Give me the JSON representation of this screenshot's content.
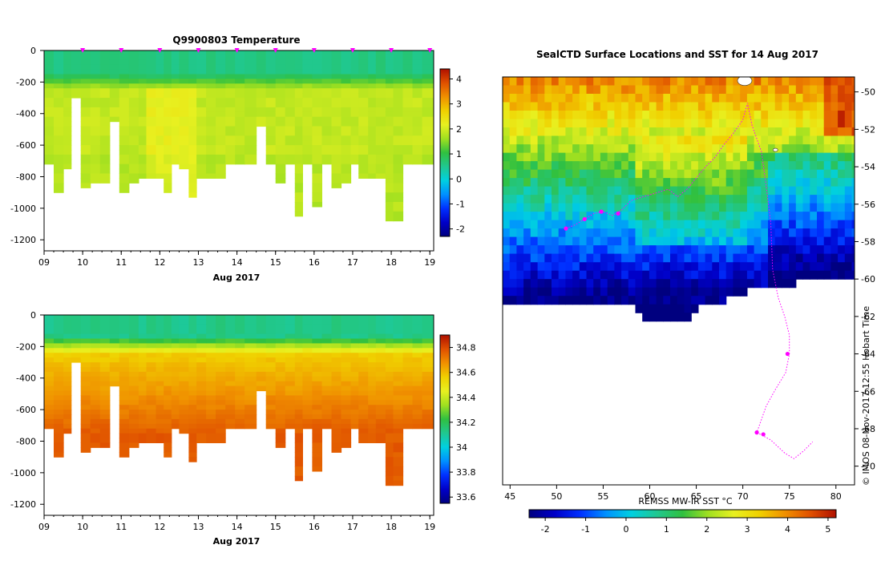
{
  "colors": {
    "jet": [
      "#00007f",
      "#0000c8",
      "#0030ff",
      "#0090ff",
      "#00d0e0",
      "#20c890",
      "#30c040",
      "#a0e020",
      "#e8f020",
      "#f0d000",
      "#f09000",
      "#e05000",
      "#b01000"
    ],
    "magenta": "#ff00ff"
  },
  "chart_data": [
    {
      "type": "heatmap",
      "title": "Q9900803  Temperature",
      "xlabel": "Aug 2017",
      "x_ticks": [
        "09",
        "10",
        "11",
        "12",
        "13",
        "14",
        "15",
        "16",
        "17",
        "18",
        "19"
      ],
      "y_ticks": [
        "0",
        "-200",
        "-400",
        "-600",
        "-800",
        "-1000",
        "-1200"
      ],
      "ylim": [
        -1270,
        0
      ],
      "xlim": [
        9,
        19.1
      ],
      "colorbar_ticks": [
        "4",
        "3",
        "2",
        "1",
        "0",
        "-1",
        "-2"
      ],
      "colorbar_range": [
        -2.3,
        4.4
      ],
      "profile_times": [
        9.0,
        9.25,
        9.5,
        9.7,
        9.95,
        10.2,
        10.45,
        10.7,
        10.95,
        11.2,
        11.45,
        11.65,
        11.9,
        12.1,
        12.3,
        12.5,
        12.75,
        12.95,
        13.2,
        13.45,
        13.7,
        13.95,
        14.2,
        14.5,
        14.75,
        15.0,
        15.25,
        15.5,
        15.7,
        15.95,
        16.2,
        16.45,
        16.7,
        16.95,
        17.15,
        17.4,
        17.6,
        17.85,
        18.05,
        18.3,
        18.55,
        18.8
      ],
      "profile_max_depth": [
        700,
        880,
        740,
        300,
        850,
        840,
        840,
        430,
        880,
        840,
        790,
        810,
        790,
        900,
        720,
        730,
        930,
        810,
        790,
        790,
        700,
        700,
        700,
        460,
        700,
        840,
        700,
        1050,
        700,
        990,
        700,
        850,
        840,
        700,
        790,
        790,
        790,
        1060,
        1060,
        700,
        700,
        700
      ],
      "markers_at": [
        10,
        11,
        12,
        13,
        14,
        15,
        16,
        17,
        18,
        19
      ]
    },
    {
      "type": "heatmap",
      "title": "",
      "xlabel": "Aug 2017",
      "x_ticks": [
        "09",
        "10",
        "11",
        "12",
        "13",
        "14",
        "15",
        "16",
        "17",
        "18",
        "19"
      ],
      "y_ticks": [
        "0",
        "-200",
        "-400",
        "-600",
        "-800",
        "-1000",
        "-1200"
      ],
      "ylim": [
        -1270,
        0
      ],
      "xlim": [
        9,
        19.1
      ],
      "colorbar_ticks": [
        "34.8",
        "34.6",
        "34.4",
        "34.2",
        "34",
        "33.8",
        "33.6"
      ],
      "colorbar_range": [
        33.55,
        34.9
      ]
    },
    {
      "type": "heatmap",
      "title": "SealCTD Surface Locations and SST for 14 Aug 2017",
      "x_ticks": [
        "45",
        "50",
        "55",
        "60",
        "65",
        "70",
        "75",
        "80"
      ],
      "y_ticks": [
        "-50",
        "-52",
        "-54",
        "-56",
        "-58",
        "-60",
        "-62",
        "-64",
        "-66",
        "-68",
        "-70"
      ],
      "xlim": [
        44.2,
        82
      ],
      "ylim": [
        -71,
        -49.2
      ],
      "colorbar_label": "REMSS MW-IR SST °C",
      "colorbar_ticks": [
        "-2",
        "-1",
        "0",
        "1",
        "2",
        "3",
        "4",
        "5"
      ],
      "colorbar_range": [
        -2.4,
        5.2
      ],
      "track": [
        [
          51,
          -57.3
        ],
        [
          52,
          -57.1
        ],
        [
          53,
          -56.8
        ],
        [
          54,
          -56.5
        ],
        [
          55,
          -56.4
        ],
        [
          56,
          -56.6
        ],
        [
          57,
          -56.3
        ],
        [
          58,
          -55.8
        ],
        [
          60,
          -55.5
        ],
        [
          62,
          -55.2
        ],
        [
          63,
          -55.6
        ],
        [
          64,
          -55.2
        ],
        [
          65,
          -54.6
        ],
        [
          66,
          -54.0
        ],
        [
          67,
          -53.5
        ],
        [
          68,
          -52.8
        ],
        [
          69,
          -52.2
        ],
        [
          70,
          -51.5
        ],
        [
          70.5,
          -50.6
        ],
        [
          71,
          -51.8
        ],
        [
          72,
          -53.2
        ],
        [
          72.5,
          -55.0
        ],
        [
          73,
          -57.0
        ],
        [
          73.2,
          -59.5
        ],
        [
          73.8,
          -61.0
        ],
        [
          74.5,
          -62.0
        ],
        [
          75,
          -63.0
        ],
        [
          75,
          -64.0
        ],
        [
          74.6,
          -65.0
        ],
        [
          73.5,
          -65.9
        ],
        [
          72.5,
          -66.8
        ],
        [
          72,
          -67.5
        ],
        [
          71.5,
          -68.2
        ],
        [
          73,
          -68.6
        ],
        [
          74.5,
          -69.3
        ],
        [
          75.5,
          -69.6
        ],
        [
          76.5,
          -69.2
        ],
        [
          77.5,
          -68.7
        ]
      ]
    }
  ],
  "footer": {
    "stamp": "© IMOS 08-Nov-2017 12:55 Hobart Time"
  }
}
